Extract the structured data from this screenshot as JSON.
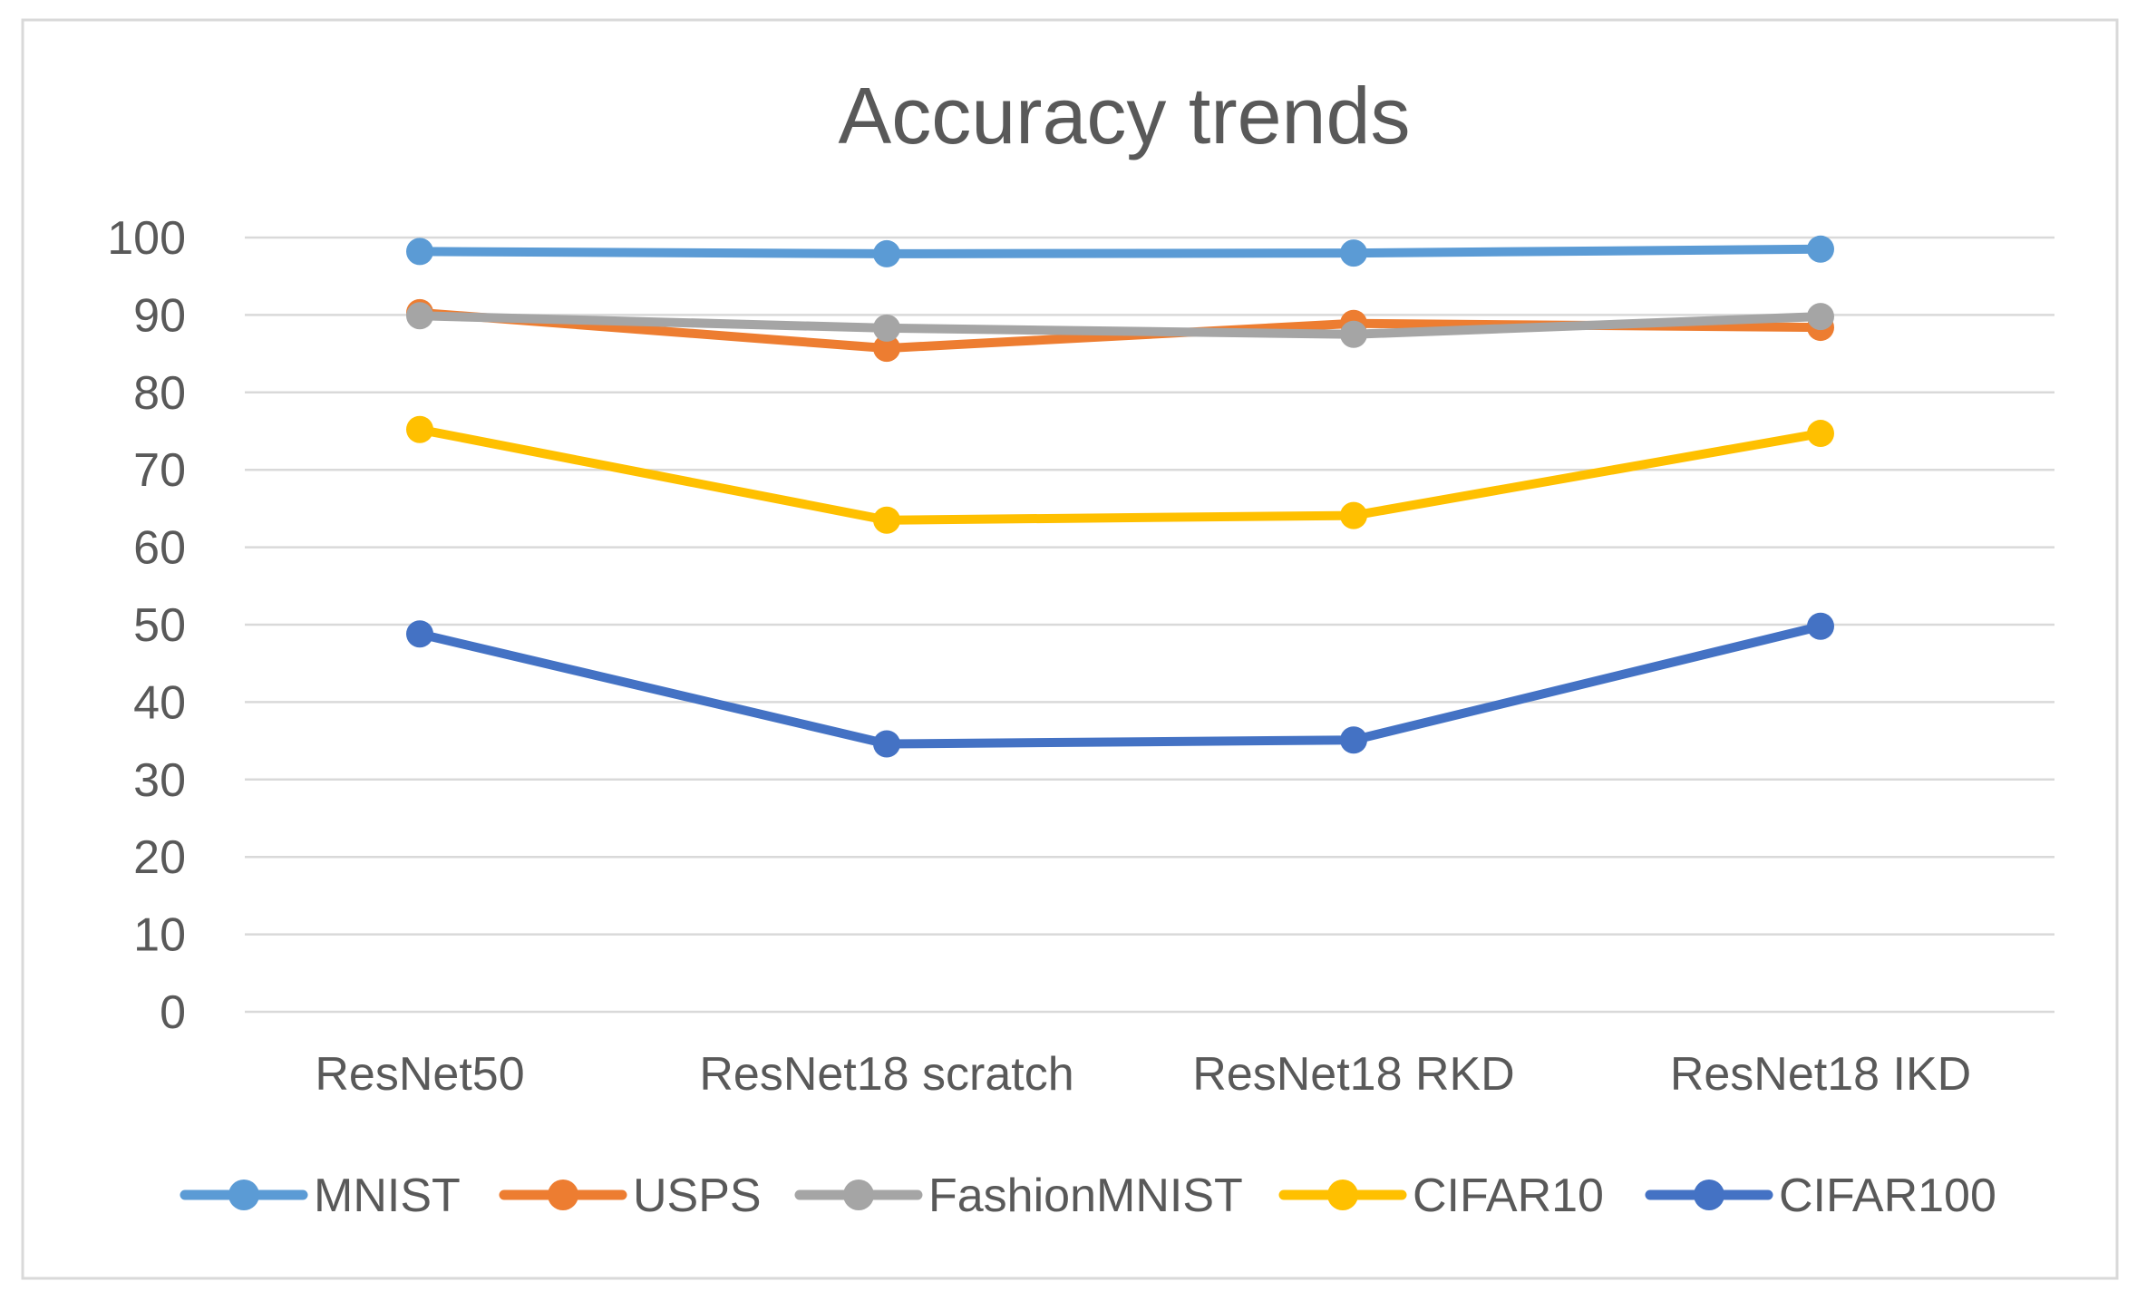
{
  "chart_data": {
    "type": "line",
    "title": "Accuracy trends",
    "categories": [
      "ResNet50",
      "ResNet18 scratch",
      "ResNet18 RKD",
      "ResNet18 IKD"
    ],
    "series": [
      {
        "name": "MNIST",
        "color": "#5B9BD5",
        "values": [
          98.2,
          97.9,
          98.0,
          98.5
        ]
      },
      {
        "name": "USPS",
        "color": "#ED7D31",
        "values": [
          90.3,
          85.7,
          88.9,
          88.4
        ]
      },
      {
        "name": "FashionMNIST",
        "color": "#A5A5A5",
        "values": [
          89.9,
          88.3,
          87.5,
          89.8
        ]
      },
      {
        "name": "CIFAR10",
        "color": "#FFC000",
        "values": [
          75.2,
          63.5,
          64.1,
          74.7
        ]
      },
      {
        "name": "CIFAR100",
        "color": "#4472C4",
        "values": [
          48.8,
          34.6,
          35.1,
          49.8
        ]
      }
    ],
    "xlabel": "",
    "ylabel": "",
    "ylim": [
      0,
      100
    ],
    "y_ticks": [
      0,
      10,
      20,
      30,
      40,
      50,
      60,
      70,
      80,
      90,
      100
    ],
    "grid": true,
    "legend_position": "bottom",
    "colors": {
      "text": "#595959",
      "gridline": "#d9d9d9",
      "frame_border": "#d9d9d9",
      "background": "#ffffff"
    }
  }
}
